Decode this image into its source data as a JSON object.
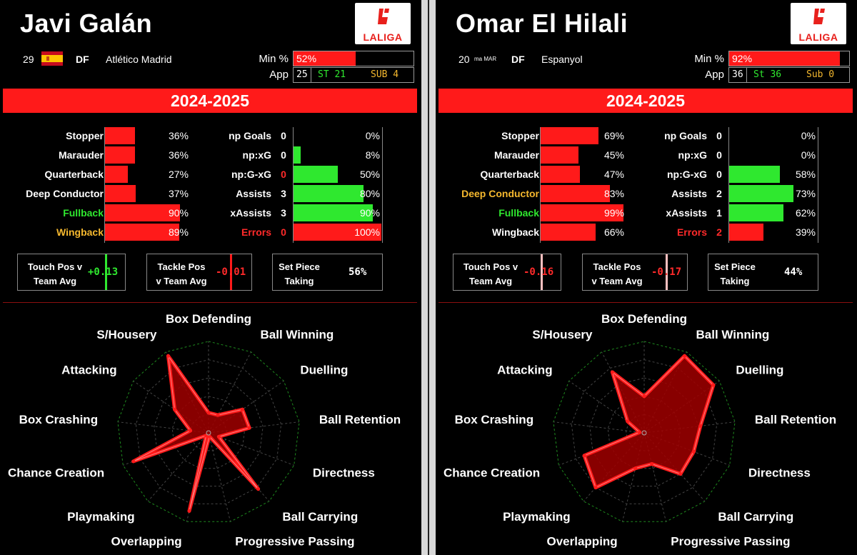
{
  "colors": {
    "red": "#ff1a1a",
    "green": "#2fe82f",
    "orange": "#f5b82e",
    "redtext": "#ff2a2a",
    "grid": "#1e8a1e"
  },
  "logo_text": "LALIGA",
  "players": [
    {
      "name": "Javi Galán",
      "age": "29",
      "nationality_icon": "spain-flag",
      "nationality_text": "",
      "position": "DF",
      "team": "Atlético Madrid",
      "min_label": "Min %",
      "min_pct": "52%",
      "min_value": 52,
      "app_label": "App",
      "apps": "25",
      "starts": "ST  21",
      "subs": "SUB 4",
      "season": "2024-2025",
      "roles": [
        {
          "label": "Stopper",
          "value": 36,
          "pct": "36%",
          "color": "white"
        },
        {
          "label": "Marauder",
          "value": 36,
          "pct": "36%",
          "color": "white"
        },
        {
          "label": "Quarterback",
          "value": 27,
          "pct": "27%",
          "color": "white"
        },
        {
          "label": "Deep Conductor",
          "value": 37,
          "pct": "37%",
          "color": "white"
        },
        {
          "label": "Fullback",
          "value": 90,
          "pct": "90%",
          "color": "green"
        },
        {
          "label": "Wingback",
          "value": 89,
          "pct": "89%",
          "color": "orange"
        }
      ],
      "stats": [
        {
          "label": "np Goals",
          "num": "0",
          "value": 0,
          "pct": "0%",
          "bar": "green",
          "label_color": "white",
          "num_color": "white"
        },
        {
          "label": "np:xG",
          "num": "0",
          "value": 8,
          "pct": "8%",
          "bar": "green",
          "label_color": "white",
          "num_color": "white"
        },
        {
          "label": "np:G-xG",
          "num": "0",
          "value": 50,
          "pct": "50%",
          "bar": "green",
          "label_color": "white",
          "num_color": "red"
        },
        {
          "label": "Assists",
          "num": "3",
          "value": 80,
          "pct": "80%",
          "bar": "green",
          "label_color": "white",
          "num_color": "white"
        },
        {
          "label": "xAssists",
          "num": "3",
          "value": 90,
          "pct": "90%",
          "bar": "green",
          "label_color": "white",
          "num_color": "white"
        },
        {
          "label": "Errors",
          "num": "0",
          "value": 100,
          "pct": "100%",
          "bar": "red",
          "label_color": "red",
          "num_color": "red"
        }
      ],
      "boxes": [
        {
          "line1": "Touch Pos v",
          "line2": "Team Avg",
          "value": "+0.13",
          "value_color": "green",
          "marker": "green"
        },
        {
          "line1": "Tackle Pos",
          "line2": "v Team Avg",
          "value": "-0.01",
          "value_color": "red",
          "marker": "red"
        },
        {
          "line1": "Set Piece",
          "line2": "Taking",
          "value": "56%",
          "value_color": "white",
          "marker": "none"
        }
      ],
      "chart_data": {
        "type": "radar",
        "categories": [
          "Box Defending",
          "Ball Winning",
          "Duelling",
          "Ball Retention",
          "Directness",
          "Ball Carrying",
          "Progressive Passing",
          "Overlapping",
          "Playmaking",
          "Chance Creation",
          "Box Crashing",
          "Attacking",
          "S/Housery"
        ],
        "values": [
          22,
          22,
          45,
          45,
          12,
          82,
          4,
          88,
          4,
          88,
          20,
          45,
          95
        ],
        "rmax": 100,
        "grid_rings": 5
      }
    },
    {
      "name": "Omar El Hilali",
      "age": "20",
      "nationality_icon": "morocco-flag",
      "nationality_text": "ma MAR",
      "position": "DF",
      "team": "Espanyol",
      "min_label": "Min %",
      "min_pct": "92%",
      "min_value": 92,
      "app_label": "App",
      "apps": "36",
      "starts": "St  36",
      "subs": "Sub 0",
      "season": "2024-2025",
      "roles": [
        {
          "label": "Stopper",
          "value": 69,
          "pct": "69%",
          "color": "white"
        },
        {
          "label": "Marauder",
          "value": 45,
          "pct": "45%",
          "color": "white"
        },
        {
          "label": "Quarterback",
          "value": 47,
          "pct": "47%",
          "color": "white"
        },
        {
          "label": "Deep Conductor",
          "value": 83,
          "pct": "83%",
          "color": "orange"
        },
        {
          "label": "Fullback",
          "value": 99,
          "pct": "99%",
          "color": "green"
        },
        {
          "label": "Wingback",
          "value": 66,
          "pct": "66%",
          "color": "white"
        }
      ],
      "stats": [
        {
          "label": "np Goals",
          "num": "0",
          "value": 0,
          "pct": "0%",
          "bar": "green",
          "label_color": "white",
          "num_color": "white"
        },
        {
          "label": "np:xG",
          "num": "0",
          "value": 0,
          "pct": "0%",
          "bar": "green",
          "label_color": "white",
          "num_color": "white"
        },
        {
          "label": "np:G-xG",
          "num": "0",
          "value": 58,
          "pct": "58%",
          "bar": "green",
          "label_color": "white",
          "num_color": "white"
        },
        {
          "label": "Assists",
          "num": "2",
          "value": 73,
          "pct": "73%",
          "bar": "green",
          "label_color": "white",
          "num_color": "white"
        },
        {
          "label": "xAssists",
          "num": "1",
          "value": 62,
          "pct": "62%",
          "bar": "green",
          "label_color": "white",
          "num_color": "white"
        },
        {
          "label": "Errors",
          "num": "2",
          "value": 39,
          "pct": "39%",
          "bar": "red",
          "label_color": "red",
          "num_color": "red"
        }
      ],
      "boxes": [
        {
          "line1": "Touch Pos v",
          "line2": "Team Avg",
          "value": "-0.16",
          "value_color": "red",
          "marker": "pink"
        },
        {
          "line1": "Tackle Pos",
          "line2": "v Team Avg",
          "value": "-0.17",
          "value_color": "red",
          "marker": "pink"
        },
        {
          "line1": "Set Piece",
          "line2": "Taking",
          "value": "44%",
          "value_color": "white",
          "marker": "none"
        }
      ],
      "chart_data": {
        "type": "radar",
        "categories": [
          "Box Defending",
          "Ball Winning",
          "Duelling",
          "Ball Retention",
          "Directness",
          "Ball Carrying",
          "Progressive Passing",
          "Overlapping",
          "Playmaking",
          "Chance Creation",
          "Box Crashing",
          "Attacking",
          "S/Housery"
        ],
        "values": [
          40,
          95,
          92,
          62,
          58,
          60,
          35,
          40,
          80,
          70,
          5,
          22,
          75
        ],
        "rmax": 100,
        "grid_rings": 5
      }
    }
  ]
}
